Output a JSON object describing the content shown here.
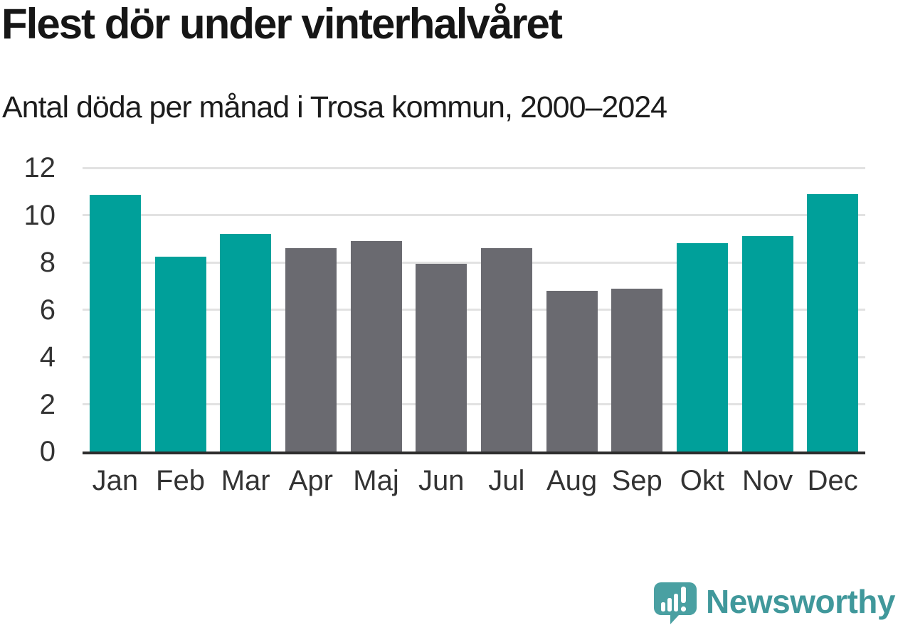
{
  "header": {
    "title": "Flest dör under vinterhalvåret",
    "subtitle": "Antal döda per månad i Trosa kommun, 2000–2024"
  },
  "chart_data": {
    "type": "bar",
    "title": "Flest dör under vinterhalvåret",
    "subtitle": "Antal döda per månad i Trosa kommun, 2000–2024",
    "categories": [
      "Jan",
      "Feb",
      "Mar",
      "Apr",
      "Maj",
      "Jun",
      "Jul",
      "Aug",
      "Sep",
      "Okt",
      "Nov",
      "Dec"
    ],
    "values": [
      10.85,
      8.25,
      9.2,
      8.6,
      8.9,
      7.95,
      8.6,
      6.8,
      6.9,
      8.8,
      9.1,
      10.9
    ],
    "bar_groups": [
      "winter",
      "winter",
      "winter",
      "summer",
      "summer",
      "summer",
      "summer",
      "summer",
      "summer",
      "winter",
      "winter",
      "winter"
    ],
    "bar_palette": {
      "winter": "#00A09A",
      "summer": "#6A6A70"
    },
    "xlabel": "",
    "ylabel": "",
    "ylim": [
      0,
      12
    ],
    "yticks": [
      0,
      2,
      4,
      6,
      8,
      10,
      12
    ],
    "grid": "horizontal",
    "legend": "none",
    "gridline_color": "#E2E2E2",
    "axis_line_color": "#2D2D2D",
    "tick_label_color": "#333333"
  },
  "branding": {
    "logo_text": "Newsworthy",
    "logo_icon": "bar-chart-speech-bubble-icon",
    "brand_color": "#40989B",
    "icon_fill": "#4AA0A2"
  }
}
